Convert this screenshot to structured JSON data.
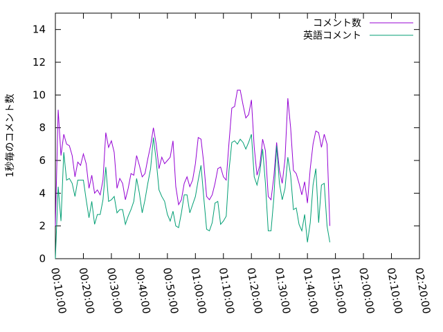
{
  "chart_data": {
    "type": "line",
    "title": "",
    "xlabel": "",
    "ylabel": "1秒毎のコメント数",
    "xlim": [
      "00:10:00",
      "02:20:00"
    ],
    "ylim": [
      0,
      15
    ],
    "grid": false,
    "legend_position": "top-right",
    "xticks": [
      "00:10:00",
      "00:20:00",
      "00:30:00",
      "00:40:00",
      "00:50:00",
      "01:00:00",
      "01:10:00",
      "01:20:00",
      "01:30:00",
      "01:40:00",
      "01:50:00",
      "02:00:00",
      "02:10:00",
      "02:20:00"
    ],
    "yticks": [
      0,
      2,
      4,
      6,
      8,
      10,
      12,
      14
    ],
    "x_start_seconds": 600,
    "x_step_seconds": 60,
    "series": [
      {
        "name": "コメント数",
        "color": "#9400d3",
        "values": [
          2.0,
          9.1,
          6.3,
          7.6,
          7.0,
          6.9,
          6.3,
          5.0,
          5.9,
          5.7,
          6.4,
          5.8,
          4.3,
          5.1,
          4.0,
          4.2,
          3.9,
          4.8,
          7.7,
          6.8,
          7.2,
          6.5,
          4.3,
          4.9,
          4.6,
          3.6,
          4.3,
          5.2,
          5.1,
          6.3,
          5.7,
          5.0,
          5.2,
          6.1,
          6.9,
          8.0,
          7.0,
          5.5,
          6.2,
          5.8,
          6.0,
          6.2,
          7.2,
          4.4,
          3.3,
          3.6,
          4.6,
          5.0,
          4.4,
          4.8,
          5.8,
          7.4,
          7.3,
          5.8,
          3.8,
          3.6,
          3.9,
          4.6,
          5.5,
          5.6,
          5.0,
          4.8,
          7.1,
          9.2,
          9.3,
          10.3,
          10.3,
          9.4,
          8.6,
          8.8,
          9.7,
          6.8,
          5.1,
          5.7,
          7.3,
          6.6,
          3.8,
          3.6,
          5.0,
          7.1,
          5.4,
          4.6,
          6.1,
          9.8,
          8.0,
          5.4,
          5.2,
          4.6,
          3.9,
          4.7,
          3.4,
          5.5,
          7.0,
          7.8,
          7.7,
          6.8,
          7.6,
          7.0,
          2.0
        ]
      },
      {
        "name": "英語コメント",
        "color": "#009e73",
        "values": [
          0.0,
          4.4,
          2.3,
          6.5,
          4.8,
          4.9,
          4.6,
          3.8,
          4.8,
          4.8,
          4.8,
          3.6,
          2.5,
          3.5,
          2.1,
          2.7,
          2.7,
          3.6,
          5.6,
          3.5,
          3.6,
          3.8,
          2.8,
          3.0,
          3.0,
          2.1,
          2.6,
          3.0,
          3.5,
          4.9,
          4.0,
          2.8,
          3.6,
          4.6,
          5.5,
          7.4,
          6.0,
          4.2,
          3.8,
          3.5,
          2.7,
          2.3,
          2.9,
          2.0,
          1.9,
          2.8,
          3.9,
          3.9,
          2.8,
          3.3,
          3.8,
          4.8,
          5.7,
          3.7,
          1.8,
          1.7,
          2.2,
          3.4,
          3.5,
          2.1,
          2.3,
          2.6,
          5.4,
          7.1,
          7.2,
          7.0,
          7.3,
          7.1,
          6.7,
          7.1,
          7.6,
          5.0,
          4.5,
          5.3,
          6.7,
          4.6,
          1.7,
          1.7,
          3.7,
          6.9,
          4.6,
          3.6,
          4.3,
          6.2,
          5.1,
          3.0,
          3.1,
          2.1,
          1.7,
          2.7,
          1.0,
          2.2,
          4.5,
          5.5,
          2.2,
          4.5,
          4.6,
          2.0,
          1.0
        ]
      }
    ]
  }
}
